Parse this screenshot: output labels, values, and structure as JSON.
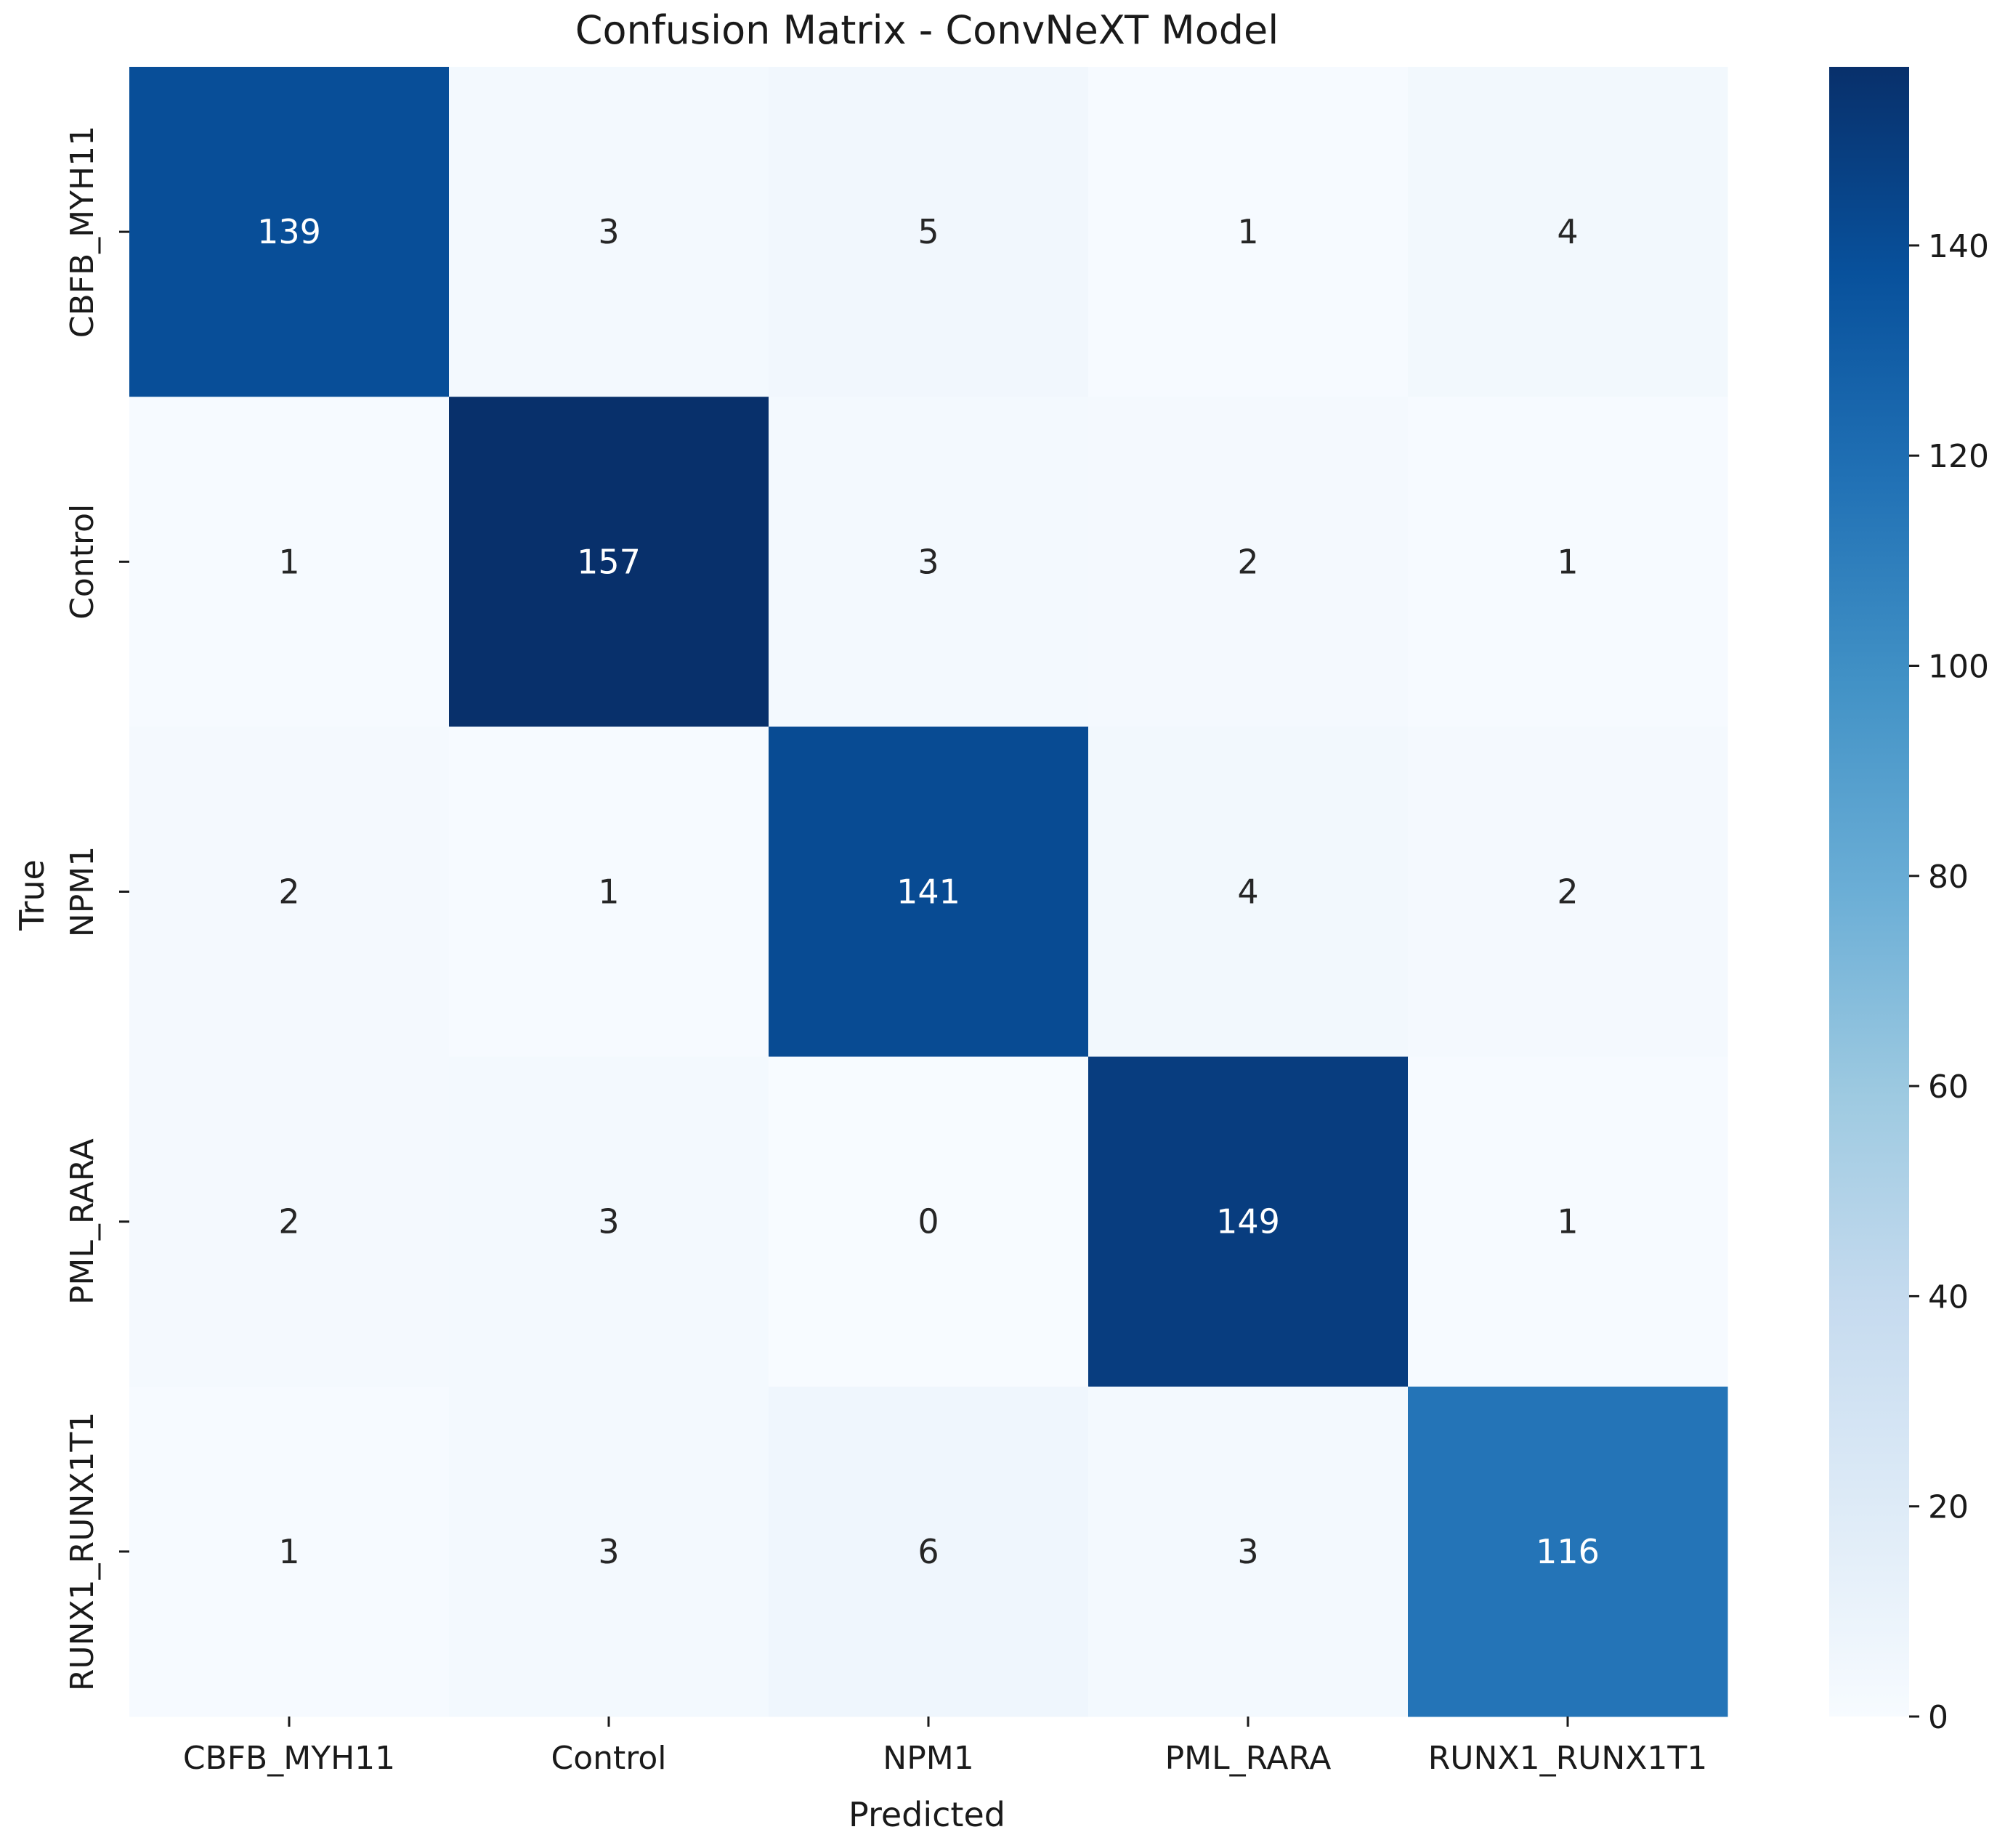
{
  "chart_data": {
    "type": "heatmap",
    "title": "Confusion Matrix - ConvNeXT Model",
    "xlabel": "Predicted",
    "ylabel": "True",
    "x_categories": [
      "CBFB_MYH11",
      "Control",
      "NPM1",
      "PML_RARA",
      "RUNX1_RUNX1T1"
    ],
    "y_categories": [
      "CBFB_MYH11",
      "Control",
      "NPM1",
      "PML_RARA",
      "RUNX1_RUNX1T1"
    ],
    "values": [
      [
        139,
        3,
        5,
        1,
        4
      ],
      [
        1,
        157,
        3,
        2,
        1
      ],
      [
        2,
        1,
        141,
        4,
        2
      ],
      [
        2,
        3,
        0,
        149,
        1
      ],
      [
        1,
        3,
        6,
        3,
        116
      ]
    ],
    "colormap": "Blues",
    "colorbar": {
      "range": [
        0,
        157
      ],
      "ticks": [
        0,
        20,
        40,
        60,
        80,
        100,
        120,
        140
      ]
    },
    "annotation_text_colors": {
      "dark": "#262626",
      "light": "#ffffff"
    }
  }
}
